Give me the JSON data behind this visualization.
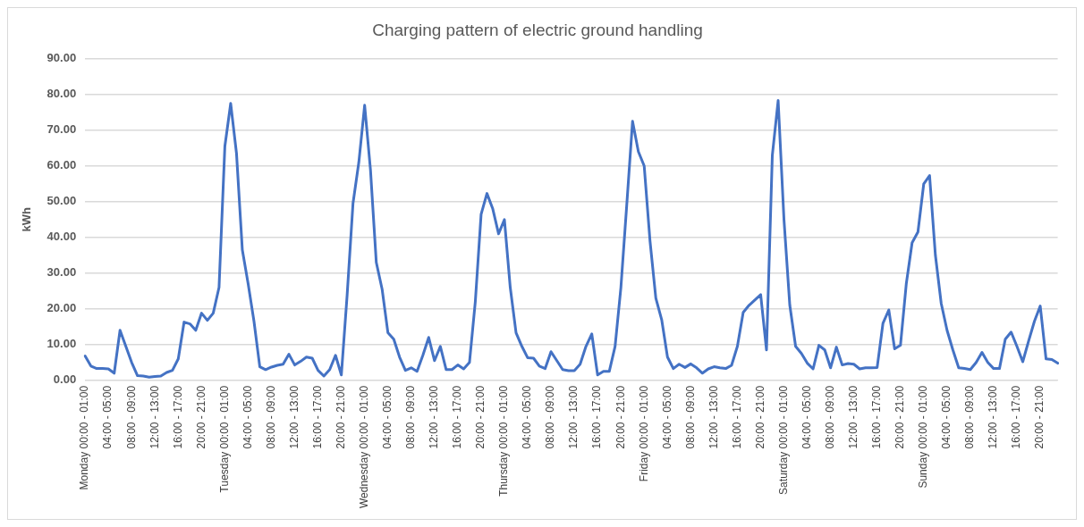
{
  "chart_data": {
    "type": "line",
    "title": "Charging pattern of electric ground handling",
    "ylabel": "kWh",
    "categories": [
      "Monday 00:00 - 01:00",
      null,
      null,
      null,
      "04:00 - 05:00",
      null,
      null,
      null,
      "08:00 - 09:00",
      null,
      null,
      null,
      "12:00 - 13:00",
      null,
      null,
      null,
      "16:00 - 17:00",
      null,
      null,
      null,
      "20:00 - 21:00",
      null,
      null,
      null,
      "Tuesday 00:00 - 01:00",
      null,
      null,
      null,
      "04:00 - 05:00",
      null,
      null,
      null,
      "08:00 - 09:00",
      null,
      null,
      null,
      "12:00 - 13:00",
      null,
      null,
      null,
      "16:00 - 17:00",
      null,
      null,
      null,
      "20:00 - 21:00",
      null,
      null,
      null,
      "Wednesday 00:00 - 01:00",
      null,
      null,
      null,
      "04:00 - 05:00",
      null,
      null,
      null,
      "08:00 - 09:00",
      null,
      null,
      null,
      "12:00 - 13:00",
      null,
      null,
      null,
      "16:00 - 17:00",
      null,
      null,
      null,
      "20:00 - 21:00",
      null,
      null,
      null,
      "Thursday 00:00 - 01:00",
      null,
      null,
      null,
      "04:00 - 05:00",
      null,
      null,
      null,
      "08:00 - 09:00",
      null,
      null,
      null,
      "12:00 - 13:00",
      null,
      null,
      null,
      "16:00 - 17:00",
      null,
      null,
      null,
      "20:00 - 21:00",
      null,
      null,
      null,
      "Friday 00:00 - 01:00",
      null,
      null,
      null,
      "04:00 - 05:00",
      null,
      null,
      null,
      "08:00 - 09:00",
      null,
      null,
      null,
      "12:00 - 13:00",
      null,
      null,
      null,
      "16:00 - 17:00",
      null,
      null,
      null,
      "20:00 - 21:00",
      null,
      null,
      null,
      "Saturday 00:00 - 01:00",
      null,
      null,
      null,
      "04:00 - 05:00",
      null,
      null,
      null,
      "08:00 - 09:00",
      null,
      null,
      null,
      "12:00 - 13:00",
      null,
      null,
      null,
      "16:00 - 17:00",
      null,
      null,
      null,
      "20:00 - 21:00",
      null,
      null,
      null,
      "Sunday 00:00 - 01:00",
      null,
      null,
      null,
      "04:00 - 05:00",
      null,
      null,
      null,
      "08:00 - 09:00",
      null,
      null,
      null,
      "12:00 - 13:00",
      null,
      null,
      null,
      "16:00 - 17:00",
      null,
      null,
      null,
      "20:00 - 21:00",
      null,
      null,
      null
    ],
    "series": [
      {
        "color": "#4472c4",
        "values": [
          6.8,
          4,
          3.3,
          3.3,
          3.2,
          2,
          14,
          9.5,
          5,
          1.3,
          1.2,
          0.9,
          1.1,
          1.2,
          2.2,
          2.8,
          6,
          16.3,
          15.8,
          14,
          18.8,
          16.8,
          18.8,
          26,
          65.5,
          77.5,
          63.5,
          36.5,
          27,
          16.5,
          3.8,
          3,
          3.7,
          4.2,
          4.5,
          7.3,
          4.3,
          5.3,
          6.5,
          6.2,
          2.8,
          1.2,
          3,
          7,
          1.5,
          24,
          49.5,
          61,
          77,
          59,
          33,
          25.5,
          13.3,
          11.5,
          6.5,
          2.8,
          3.5,
          2.5,
          7,
          12,
          5.5,
          9.5,
          3,
          3,
          4.3,
          3.2,
          5,
          22,
          46.5,
          52.3,
          48,
          41,
          45,
          26,
          13.3,
          9.5,
          6.3,
          6.2,
          4,
          3.3,
          8,
          5.5,
          3,
          2.7,
          2.7,
          4.5,
          9.5,
          13,
          1.5,
          2.5,
          2.5,
          9.5,
          26,
          49,
          72.5,
          64,
          60,
          39,
          23,
          17,
          6.5,
          3.3,
          4.5,
          3.6,
          4.6,
          3.5,
          2,
          3.2,
          3.8,
          3.5,
          3.3,
          4.2,
          9.5,
          19,
          21,
          22.5,
          24,
          8.5,
          63,
          78.3,
          45,
          21,
          9.5,
          7.5,
          4.8,
          3.2,
          9.8,
          8.5,
          3.5,
          9.3,
          4.3,
          4.7,
          4.5,
          3.2,
          3.5,
          3.5,
          3.6,
          16,
          19.7,
          8.8,
          9.8,
          27,
          38.5,
          41.5,
          55,
          57.3,
          35,
          21.5,
          14,
          8.5,
          3.5,
          3.3,
          3,
          5,
          7.8,
          5,
          3.3,
          3.3,
          11.5,
          13.5,
          9.5,
          5.2,
          11,
          16.5,
          20.8,
          6,
          5.8,
          4.8
        ]
      }
    ],
    "ylim": [
      0,
      90
    ],
    "yticks": [
      {
        "value": 0,
        "label": "0.00"
      },
      {
        "value": 10,
        "label": "10.00"
      },
      {
        "value": 20,
        "label": "20.00"
      },
      {
        "value": 30,
        "label": "30.00"
      },
      {
        "value": 40,
        "label": "40.00"
      },
      {
        "value": 50,
        "label": "50.00"
      },
      {
        "value": 60,
        "label": "60.00"
      },
      {
        "value": 70,
        "label": "70.00"
      },
      {
        "value": 80,
        "label": "80.00"
      },
      {
        "value": 90,
        "label": "90.00"
      }
    ],
    "grid": "y",
    "legend": false,
    "marker": "none",
    "line_style": "solid"
  }
}
